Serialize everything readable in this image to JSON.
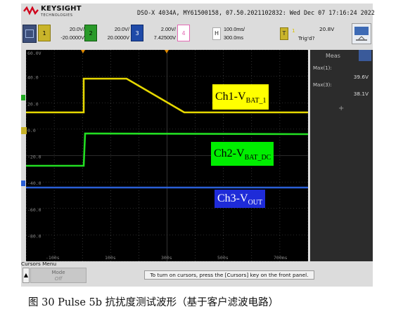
{
  "header": {
    "brand": "KEYSIGHT",
    "brand_sub": "TECHNOLOGIES",
    "status_line": "DSO-X 4034A, MY61500158, 07.50.2021102832: Wed Dec 07 17:16:24 2022"
  },
  "channels": [
    {
      "num": "1",
      "scale": "20.0V/",
      "offset": "-20.0000V",
      "color": "#e6d800"
    },
    {
      "num": "2",
      "scale": "20.0V/",
      "offset": "20.0000V",
      "color": "#22bb22"
    },
    {
      "num": "3",
      "scale": "2.00V/",
      "offset": "7.42500V",
      "color": "#2a5fd6"
    },
    {
      "num": "4",
      "scale": "",
      "offset": "",
      "color": "#e36ab4"
    }
  ],
  "timebase": {
    "h_label": "H",
    "scale": "100.0ms/",
    "delay": "300.0ms"
  },
  "trigger": {
    "t_label": "T",
    "source_mark": "1",
    "level": "20.8V",
    "state": "Trig'd?"
  },
  "grid": {
    "left_labels": [
      "60.0V",
      "40.0",
      "20.0",
      "0.0",
      "-20.0",
      "-40.0",
      "-60.0",
      "-80.0"
    ],
    "bottom_labels": [
      "-100s",
      "100s",
      "300s",
      "500s",
      "700ms"
    ]
  },
  "measurements": {
    "title": "Meas",
    "items": [
      {
        "label": "Max(1):",
        "value": "39.6V"
      },
      {
        "label": "Max(3):",
        "value": "38.1V"
      }
    ],
    "add_symbol": "+"
  },
  "bottom": {
    "cursors_menu": "Cursors Menu",
    "mode_label": "Mode",
    "mode_value": "Off",
    "hint": "To turn on cursors, press the [Cursors] key on the front panel."
  },
  "annotations": {
    "ch1": {
      "main": "Ch1-V",
      "sub": "BAT_1"
    },
    "ch2": {
      "main": "Ch2-V",
      "sub": "BAT_DC"
    },
    "ch3": {
      "main": "Ch3-V",
      "sub": "OUT"
    }
  },
  "caption": "图 30 Pulse 5b 抗扰度测试波形（基于客户滤波电路）",
  "colors": {
    "ch1": "#e6d800",
    "ch2": "#22dd22",
    "ch3": "#2a5fd6",
    "grid_bg": "#000000"
  }
}
